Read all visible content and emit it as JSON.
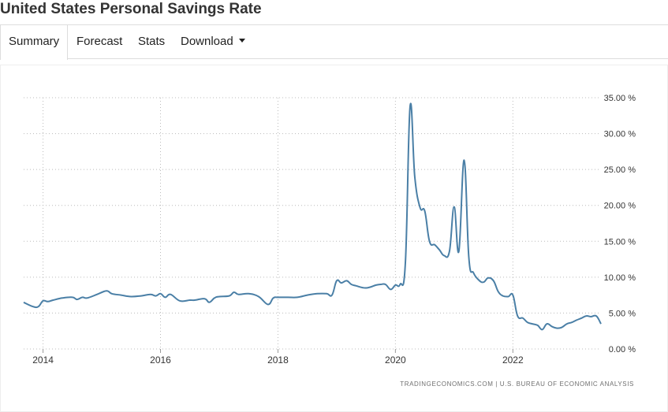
{
  "header": {
    "title": "United States Personal Savings Rate"
  },
  "tabs": [
    {
      "label": "Summary",
      "active": true
    },
    {
      "label": "Forecast",
      "active": false
    },
    {
      "label": "Stats",
      "active": false
    },
    {
      "label": "Download",
      "active": false,
      "has_dropdown": true
    }
  ],
  "colors": {
    "line": "#4a7fa6",
    "grid": "#bbbbbb",
    "text": "#333333"
  },
  "source_caption": "TRADINGECONOMICS.COM  |  U.S. BUREAU OF ECONOMIC ANALYSIS",
  "chart_data": {
    "type": "line",
    "title": "",
    "xlabel": "",
    "ylabel": "",
    "xlim": [
      2013.67,
      2023.5
    ],
    "ylim": [
      0,
      35
    ],
    "x_ticks": [
      2014,
      2016,
      2018,
      2020,
      2022
    ],
    "x_tick_labels": [
      "2014",
      "2016",
      "2018",
      "2020",
      "2022"
    ],
    "y_ticks": [
      0,
      5,
      10,
      15,
      20,
      25,
      30,
      35
    ],
    "y_tick_labels": [
      "0.00 %",
      "5.00 %",
      "10.00 %",
      "15.00 %",
      "20.00 %",
      "25.00 %",
      "30.00 %",
      "35.00 %"
    ],
    "y_axis_side": "right",
    "grid": true,
    "series": [
      {
        "name": "Personal Savings Rate",
        "x": [
          2013.67,
          2013.83,
          2013.92,
          2014.0,
          2014.08,
          2014.17,
          2014.33,
          2014.5,
          2014.58,
          2014.67,
          2014.75,
          2014.92,
          2015.08,
          2015.17,
          2015.33,
          2015.5,
          2015.67,
          2015.83,
          2015.92,
          2016.0,
          2016.08,
          2016.17,
          2016.33,
          2016.5,
          2016.58,
          2016.75,
          2016.83,
          2016.92,
          2017.0,
          2017.17,
          2017.25,
          2017.33,
          2017.5,
          2017.67,
          2017.83,
          2017.92,
          2018.0,
          2018.17,
          2018.33,
          2018.5,
          2018.67,
          2018.83,
          2018.92,
          2019.0,
          2019.08,
          2019.17,
          2019.25,
          2019.33,
          2019.5,
          2019.67,
          2019.75,
          2019.83,
          2019.92,
          2020.0,
          2020.08,
          2020.17,
          2020.25,
          2020.33,
          2020.42,
          2020.5,
          2020.58,
          2020.67,
          2020.75,
          2020.83,
          2020.92,
          2021.0,
          2021.08,
          2021.17,
          2021.25,
          2021.33,
          2021.42,
          2021.5,
          2021.58,
          2021.67,
          2021.75,
          2021.83,
          2021.92,
          2022.0,
          2022.08,
          2022.17,
          2022.25,
          2022.33,
          2022.42,
          2022.5,
          2022.58,
          2022.67,
          2022.75,
          2022.83,
          2022.92,
          2023.0,
          2023.08,
          2023.17,
          2023.25,
          2023.33,
          2023.42,
          2023.5
        ],
        "values": [
          6.5,
          5.9,
          5.9,
          6.7,
          6.6,
          6.8,
          7.1,
          7.2,
          6.9,
          7.2,
          7.1,
          7.6,
          8.1,
          7.7,
          7.5,
          7.3,
          7.4,
          7.6,
          7.4,
          7.7,
          7.2,
          7.6,
          6.7,
          6.8,
          6.8,
          7.0,
          6.5,
          7.1,
          7.3,
          7.4,
          7.9,
          7.6,
          7.7,
          7.3,
          6.2,
          7.1,
          7.2,
          7.2,
          7.2,
          7.5,
          7.7,
          7.7,
          7.5,
          9.5,
          9.2,
          9.5,
          9.0,
          8.8,
          8.5,
          8.9,
          9.0,
          9.0,
          8.3,
          8.9,
          9.0,
          12.0,
          33.8,
          24.0,
          19.7,
          19.2,
          15.0,
          14.5,
          13.8,
          13.0,
          13.6,
          19.8,
          13.6,
          26.3,
          12.7,
          10.6,
          9.6,
          9.3,
          9.9,
          9.5,
          8.0,
          7.4,
          7.3,
          7.5,
          4.6,
          4.3,
          3.7,
          3.5,
          3.3,
          2.7,
          3.5,
          3.1,
          2.9,
          3.0,
          3.5,
          3.7,
          4.0,
          4.3,
          4.6,
          4.5,
          4.6,
          3.5
        ]
      }
    ]
  }
}
